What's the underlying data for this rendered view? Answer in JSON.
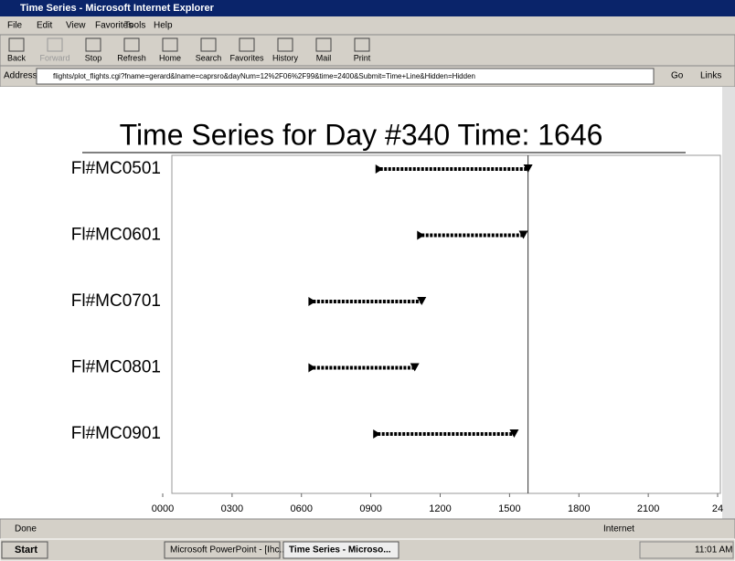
{
  "window": {
    "title": "Time Series - Microsoft Internet Explorer"
  },
  "menu": [
    "File",
    "Edit",
    "View",
    "Favorites",
    "Tools",
    "Help"
  ],
  "toolbar": [
    "Back",
    "Forward",
    "Stop",
    "Refresh",
    "Home",
    "Search",
    "Favorites",
    "History",
    "Mail",
    "Print"
  ],
  "address": {
    "label": "Address",
    "url": "flights/plot_flights.cgi?fname=gerard&lname=caprsro&dayNum=12%2F06%2F99&time=2400&Submit=Time+Line&Hidden=Hidden",
    "go": "Go",
    "links": "Links"
  },
  "chart_data": {
    "type": "range",
    "title": "Time Series for Day #340 Time: 1646",
    "categories": [
      "Fl#MC0501",
      "Fl#MC0601",
      "Fl#MC0701",
      "Fl#MC0801",
      "Fl#MC0901"
    ],
    "series": [
      {
        "color": "#000000",
        "starts": [
          9.4,
          11.2,
          6.5,
          6.5,
          9.3
        ],
        "ends": [
          15.8,
          15.6,
          11.2,
          10.9,
          15.2
        ]
      }
    ],
    "current_time": 15.8,
    "xlim": [
      0,
      24
    ],
    "xticks": [
      {
        "value": 0,
        "label": "0000"
      },
      {
        "value": 3,
        "label": "0300"
      },
      {
        "value": 6,
        "label": "0600"
      },
      {
        "value": 9,
        "label": "0900"
      },
      {
        "value": 12,
        "label": "1200"
      },
      {
        "value": 15,
        "label": "1500"
      },
      {
        "value": 18,
        "label": "1800"
      },
      {
        "value": 21,
        "label": "2100"
      },
      {
        "value": 24,
        "label": "24"
      }
    ]
  },
  "status": {
    "left": "Done",
    "zone": "Internet"
  },
  "taskbar": {
    "start": "Start",
    "items": [
      "Microsoft PowerPoint - [Ihc...",
      "Time Series - Microso..."
    ],
    "clock": "11:01 AM"
  }
}
